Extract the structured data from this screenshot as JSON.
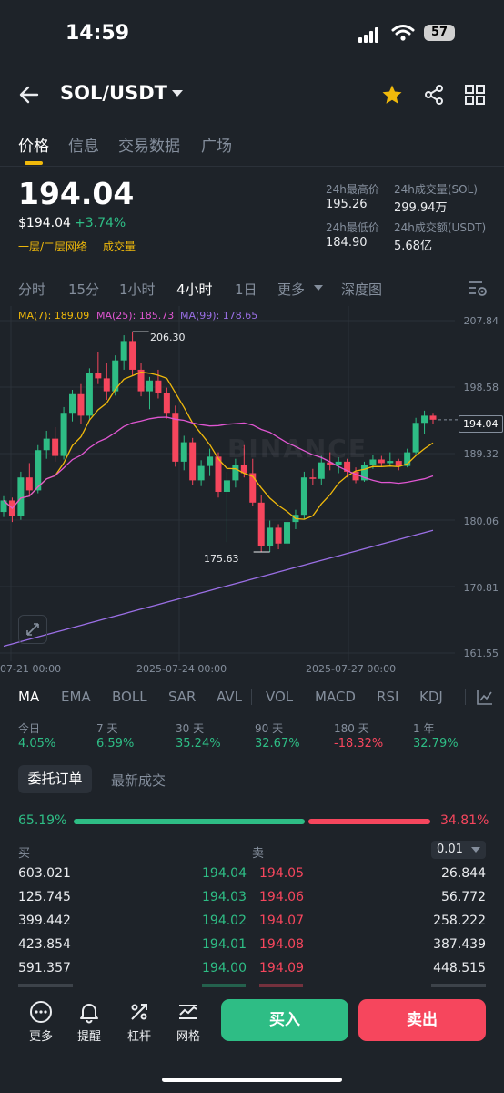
{
  "status_bar": {
    "time": "14:59",
    "battery": "57"
  },
  "header": {
    "pair": "SOL/USDT"
  },
  "tabs": [
    {
      "label": "价格",
      "active": true
    },
    {
      "label": "信息",
      "active": false
    },
    {
      "label": "交易数据",
      "active": false
    },
    {
      "label": "广场",
      "active": false
    }
  ],
  "price_block": {
    "last_price": "194.04",
    "usd_price": "$194.04",
    "change": "+3.74%",
    "tag1": "一层/二层网络",
    "tag2": "成交量"
  },
  "stats": {
    "high_label": "24h最高价",
    "high_value": "195.26",
    "low_label": "24h最低价",
    "low_value": "184.90",
    "vol_sol_label": "24h成交量(SOL)",
    "vol_sol_value": "299.94万",
    "vol_usdt_label": "24h成交额(USDT)",
    "vol_usdt_value": "5.68亿"
  },
  "intervals": [
    {
      "label": "分时"
    },
    {
      "label": "15分"
    },
    {
      "label": "1小时"
    },
    {
      "label": "4小时",
      "active": true
    },
    {
      "label": "1日"
    },
    {
      "label": "更多"
    },
    {
      "label": "深度图"
    }
  ],
  "ma_legend": {
    "ma7": "MA(7): 189.09",
    "ma25": "MA(25): 185.73",
    "ma99": "MA(99): 178.65"
  },
  "chart_data": {
    "type": "candlestick",
    "y_ticks": [
      "207.84",
      "198.58",
      "189.32",
      "180.06",
      "170.81",
      "161.55"
    ],
    "x_ticks": [
      "07-21 00:00",
      "2025-07-24 00:00",
      "2025-07-27 00:00"
    ],
    "ylim": [
      161.55,
      207.84
    ],
    "current_price_label": "194.04",
    "high_annotation": "206.30",
    "low_annotation": "175.63",
    "watermark": "BINANCE",
    "candles": [
      [
        181.2,
        183.4,
        180.5,
        182.8
      ],
      [
        182.8,
        183.2,
        179.8,
        180.6
      ],
      [
        180.6,
        186.8,
        180.1,
        186.0
      ],
      [
        186.0,
        188.0,
        183.5,
        184.2
      ],
      [
        184.2,
        190.5,
        183.8,
        189.8
      ],
      [
        189.8,
        192.5,
        188.6,
        191.4
      ],
      [
        191.4,
        193.0,
        188.2,
        189.0
      ],
      [
        189.0,
        195.8,
        188.5,
        195.0
      ],
      [
        195.0,
        198.2,
        193.8,
        197.6
      ],
      [
        197.6,
        199.0,
        193.5,
        194.6
      ],
      [
        194.6,
        201.2,
        194.0,
        200.5
      ],
      [
        200.5,
        203.5,
        199.0,
        199.8
      ],
      [
        199.8,
        202.0,
        196.8,
        198.0
      ],
      [
        198.0,
        203.0,
        197.4,
        202.3
      ],
      [
        202.3,
        205.8,
        201.0,
        205.0
      ],
      [
        205.0,
        206.3,
        200.2,
        201.0
      ],
      [
        201.0,
        202.0,
        197.3,
        198.0
      ],
      [
        198.0,
        200.0,
        195.5,
        199.5
      ],
      [
        199.5,
        201.0,
        197.0,
        197.8
      ],
      [
        197.8,
        198.5,
        194.2,
        195.0
      ],
      [
        195.0,
        196.0,
        187.5,
        188.2
      ],
      [
        188.2,
        191.8,
        187.0,
        190.9
      ],
      [
        190.9,
        191.5,
        185.0,
        185.6
      ],
      [
        185.6,
        188.4,
        184.8,
        187.6
      ],
      [
        187.6,
        190.0,
        186.2,
        188.9
      ],
      [
        188.9,
        189.5,
        183.2,
        184.0
      ],
      [
        184.0,
        186.8,
        177.0,
        185.6
      ],
      [
        185.6,
        188.6,
        184.6,
        187.8
      ],
      [
        187.8,
        190.5,
        186.0,
        186.6
      ],
      [
        186.6,
        188.6,
        182.0,
        182.5
      ],
      [
        182.5,
        183.5,
        175.6,
        176.4
      ],
      [
        176.4,
        180.0,
        175.63,
        179.0
      ],
      [
        179.0,
        179.5,
        176.0,
        176.8
      ],
      [
        176.8,
        180.5,
        176.0,
        179.8
      ],
      [
        179.8,
        181.5,
        178.8,
        180.8
      ],
      [
        180.8,
        186.8,
        180.2,
        186.0
      ],
      [
        186.0,
        187.2,
        185.0,
        185.8
      ],
      [
        185.8,
        189.0,
        185.0,
        188.1
      ],
      [
        188.1,
        189.5,
        187.0,
        187.8
      ],
      [
        187.8,
        188.8,
        186.6,
        188.2
      ],
      [
        188.2,
        188.6,
        186.0,
        186.8
      ],
      [
        186.8,
        187.4,
        185.2,
        185.6
      ],
      [
        185.6,
        188.2,
        185.4,
        187.7
      ],
      [
        187.7,
        189.2,
        187.2,
        188.5
      ],
      [
        188.5,
        189.0,
        187.5,
        188.0
      ],
      [
        188.0,
        189.5,
        187.6,
        188.3
      ],
      [
        188.3,
        188.6,
        187.0,
        187.6
      ],
      [
        187.6,
        190.0,
        187.4,
        189.5
      ],
      [
        189.5,
        194.3,
        189.0,
        193.6
      ],
      [
        193.6,
        195.3,
        192.0,
        194.6
      ],
      [
        194.6,
        195.0,
        193.4,
        194.04
      ]
    ]
  },
  "indicators": [
    {
      "label": "MA",
      "active": true
    },
    {
      "label": "EMA"
    },
    {
      "label": "BOLL"
    },
    {
      "label": "SAR"
    },
    {
      "label": "AVL"
    },
    {
      "label": "VOL"
    },
    {
      "label": "MACD"
    },
    {
      "label": "RSI"
    },
    {
      "label": "KDJ"
    }
  ],
  "performance": [
    {
      "period": "今日",
      "value": "4.05%",
      "dir": "up"
    },
    {
      "period": "7 天",
      "value": "6.59%",
      "dir": "up"
    },
    {
      "period": "30 天",
      "value": "35.24%",
      "dir": "up"
    },
    {
      "period": "90 天",
      "value": "32.67%",
      "dir": "up"
    },
    {
      "period": "180 天",
      "value": "-18.32%",
      "dir": "down"
    },
    {
      "period": "1 年",
      "value": "32.79%",
      "dir": "up"
    }
  ],
  "orderbook": {
    "tab_active": "委托订单",
    "tab_inactive": "最新成交",
    "buy_ratio": "65.19%",
    "sell_ratio": "34.81%",
    "buy_ratio_value": 0.6519,
    "buy_label": "买",
    "sell_label": "卖",
    "precision": "0.01",
    "rows": [
      {
        "bid_qty": "603.021",
        "bid_price": "194.04",
        "ask_price": "194.05",
        "ask_qty": "26.844"
      },
      {
        "bid_qty": "125.745",
        "bid_price": "194.03",
        "ask_price": "194.06",
        "ask_qty": "56.772"
      },
      {
        "bid_qty": "399.442",
        "bid_price": "194.02",
        "ask_price": "194.07",
        "ask_qty": "258.222"
      },
      {
        "bid_qty": "423.854",
        "bid_price": "194.01",
        "ask_price": "194.08",
        "ask_qty": "387.439"
      },
      {
        "bid_qty": "591.357",
        "bid_price": "194.00",
        "ask_price": "194.09",
        "ask_qty": "448.515"
      }
    ]
  },
  "bottom_nav": {
    "more": "更多",
    "alert": "提醒",
    "leverage": "杠杆",
    "grid": "网格",
    "buy": "买入",
    "sell": "卖出"
  },
  "colors": {
    "green": "#2ebd85",
    "red": "#f6465d",
    "accent": "#f0b90b",
    "background": "#1e2329"
  }
}
